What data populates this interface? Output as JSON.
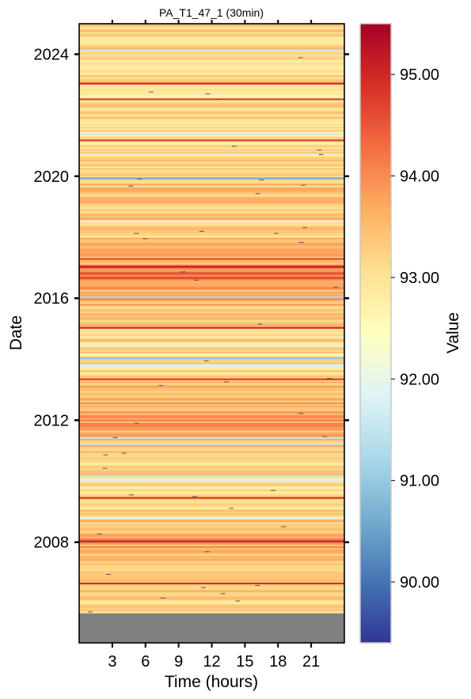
{
  "chart_data": {
    "type": "heatmap",
    "title": "PA_T1_47_1 (30min)",
    "xlabel": "Time (hours)",
    "ylabel": "Date",
    "x_range_hours": [
      0,
      24
    ],
    "x_ticks": [
      3,
      6,
      9,
      12,
      15,
      18,
      21
    ],
    "x_tick_labels": [
      "3",
      "6",
      "9",
      "12",
      "15",
      "18",
      "21"
    ],
    "y_range_years": [
      2004.7,
      2025.0
    ],
    "y_ticks": [
      2008,
      2012,
      2016,
      2020,
      2024
    ],
    "y_tick_labels": [
      "2008",
      "2012",
      "2016",
      "2020",
      "2024"
    ],
    "data_start_year": 2005.7,
    "no_data_range_years": [
      2004.7,
      2005.7
    ],
    "colorbar": {
      "label": "Value",
      "colormap": "RdYlBu_r",
      "vmin": 89.4,
      "vmax": 95.5,
      "ticks": [
        90,
        91,
        92,
        93,
        94,
        95
      ],
      "tick_labels": [
        "90.00",
        "91.00",
        "92.00",
        "93.00",
        "94.00",
        "95.00"
      ]
    },
    "row_value_profile": [
      {
        "year": 2005.7,
        "value": 93.0
      },
      {
        "year": 2006.5,
        "value": 93.4
      },
      {
        "year": 2007.0,
        "value": 93.2
      },
      {
        "year": 2008.0,
        "value": 93.8
      },
      {
        "year": 2009.0,
        "value": 93.2
      },
      {
        "year": 2010.0,
        "value": 93.1
      },
      {
        "year": 2011.0,
        "value": 93.3
      },
      {
        "year": 2012.0,
        "value": 93.8
      },
      {
        "year": 2013.0,
        "value": 93.4
      },
      {
        "year": 2014.0,
        "value": 93.0
      },
      {
        "year": 2015.0,
        "value": 93.3
      },
      {
        "year": 2016.0,
        "value": 93.6
      },
      {
        "year": 2017.0,
        "value": 93.8
      },
      {
        "year": 2018.0,
        "value": 93.3
      },
      {
        "year": 2019.0,
        "value": 93.4
      },
      {
        "year": 2020.0,
        "value": 93.3
      },
      {
        "year": 2021.0,
        "value": 92.9
      },
      {
        "year": 2022.0,
        "value": 93.1
      },
      {
        "year": 2023.0,
        "value": 93.0
      },
      {
        "year": 2024.0,
        "value": 93.2
      },
      {
        "year": 2025.0,
        "value": 93.3
      }
    ],
    "notable_rows": [
      {
        "year": 2019.9,
        "value": 90.6
      },
      {
        "year": 2017.0,
        "value": 95.2
      },
      {
        "year": 2016.0,
        "value": 91.2
      },
      {
        "year": 2015.0,
        "value": 95.0
      },
      {
        "year": 2014.0,
        "value": 91.0
      },
      {
        "year": 2010.0,
        "value": 91.8
      },
      {
        "year": 2008.0,
        "value": 95.1
      },
      {
        "year": 2024.1,
        "value": 91.5
      },
      {
        "year": 2023.0,
        "value": 94.8
      }
    ],
    "colors": {
      "no_data": "#808080",
      "frame": "#000000",
      "colorbar_frame": "#c8c8c8"
    }
  }
}
